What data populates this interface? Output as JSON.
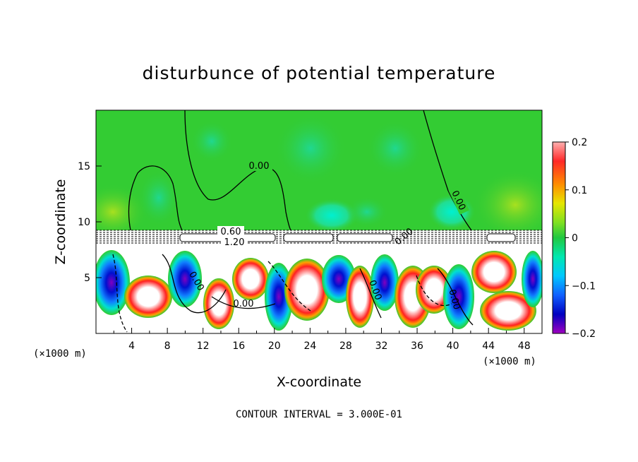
{
  "chart_data": {
    "type": "heatmap",
    "title": "disturbunce of potential temperature",
    "xlabel": "X-coordinate",
    "ylabel": "Z-coordinate",
    "x_unit_left": "(×1000 m)",
    "x_unit_right": "(×1000 m)",
    "xlim": [
      0,
      50
    ],
    "ylim": [
      0,
      20
    ],
    "x_ticks": [
      4,
      8,
      12,
      16,
      20,
      24,
      28,
      32,
      36,
      40,
      44,
      48
    ],
    "y_ticks": [
      5,
      10,
      15
    ],
    "colorbar": {
      "min": -0.2,
      "max": 0.2,
      "tick_labels": [
        "0.2",
        "0.1",
        "0",
        "−0.1",
        "−0.2"
      ],
      "tick_values": [
        0.2,
        0.1,
        0,
        -0.1,
        -0.2
      ]
    },
    "contour_labels": [
      "0.00",
      "0.00",
      "0.60",
      "1.20",
      "0.00",
      "0.00",
      "0.00",
      "0.00",
      "0.00"
    ],
    "footer": "CONTOUR INTERVAL = 3.000E-01"
  },
  "colors": {
    "upper_green": "#33cc33",
    "warm": "#ff2020",
    "cool": "#2020ff",
    "neutral_white": "#ffffff"
  }
}
